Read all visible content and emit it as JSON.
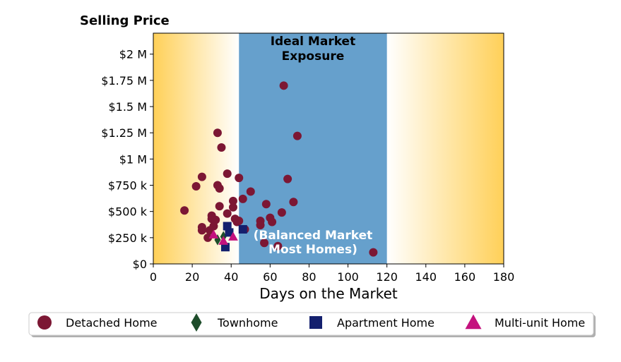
{
  "colors": {
    "ideal_band": "#66a0cc",
    "edge_gold": "#ffd058",
    "detached": "#7c1734",
    "townhome": "#1e4d2b",
    "apartment": "#14206e",
    "multi_unit": "#c4127e"
  },
  "chart_data": {
    "type": "scatter",
    "ylabel": "Selling Price",
    "xlabel": "Days on the Market",
    "xlim": [
      0,
      180
    ],
    "ylim": [
      0,
      2200000
    ],
    "x_ticks": [
      0,
      20,
      40,
      60,
      80,
      100,
      120,
      140,
      160,
      180
    ],
    "x_tick_labels": [
      "0",
      "20",
      "40",
      "60",
      "80",
      "100",
      "120",
      "140",
      "160",
      "180"
    ],
    "y_ticks": [
      0,
      250000,
      500000,
      750000,
      1000000,
      1250000,
      1500000,
      1750000,
      2000000
    ],
    "y_tick_labels": [
      "$0",
      "$250 k",
      "$500 k",
      "$750 k",
      "$1 M",
      "$1.25 M",
      "$1.5 M",
      "$1.75 M",
      "$2 M"
    ],
    "grid": false,
    "legend_position": "bottom",
    "ideal_range": [
      44,
      120
    ],
    "annotations": {
      "top_line1": "Ideal Market",
      "top_line2": "Exposure",
      "bottom_line1": "(Balanced Market",
      "bottom_line2": "Most Homes)"
    },
    "series": [
      {
        "name": "Detached Home",
        "marker": "circle",
        "points": [
          [
            16,
            510000
          ],
          [
            22,
            740000
          ],
          [
            25,
            830000
          ],
          [
            25,
            350000
          ],
          [
            25,
            320000
          ],
          [
            28,
            250000
          ],
          [
            29,
            320000
          ],
          [
            30,
            460000
          ],
          [
            30,
            430000
          ],
          [
            31,
            360000
          ],
          [
            32,
            420000
          ],
          [
            33,
            1250000
          ],
          [
            33,
            750000
          ],
          [
            34,
            720000
          ],
          [
            34,
            550000
          ],
          [
            35,
            1110000
          ],
          [
            38,
            860000
          ],
          [
            38,
            480000
          ],
          [
            41,
            540000
          ],
          [
            41,
            600000
          ],
          [
            42,
            430000
          ],
          [
            43,
            400000
          ],
          [
            44,
            820000
          ],
          [
            44,
            410000
          ],
          [
            46,
            620000
          ],
          [
            47,
            330000
          ],
          [
            50,
            690000
          ],
          [
            55,
            410000
          ],
          [
            55,
            370000
          ],
          [
            57,
            200000
          ],
          [
            58,
            570000
          ],
          [
            60,
            440000
          ],
          [
            61,
            400000
          ],
          [
            64,
            170000
          ],
          [
            66,
            490000
          ],
          [
            67,
            1700000
          ],
          [
            69,
            810000
          ],
          [
            72,
            590000
          ],
          [
            74,
            1220000
          ],
          [
            113,
            110000
          ]
        ]
      },
      {
        "name": "Townhome",
        "marker": "diamond",
        "points": [
          [
            33,
            230000
          ],
          [
            36,
            260000
          ]
        ]
      },
      {
        "name": "Apartment Home",
        "marker": "square",
        "points": [
          [
            37,
            160000
          ],
          [
            38,
            360000
          ],
          [
            39,
            300000
          ],
          [
            46,
            330000
          ]
        ]
      },
      {
        "name": "Multi-unit Home",
        "marker": "triangle",
        "points": [
          [
            31,
            280000
          ],
          [
            36,
            220000
          ],
          [
            41,
            260000
          ]
        ]
      }
    ]
  }
}
